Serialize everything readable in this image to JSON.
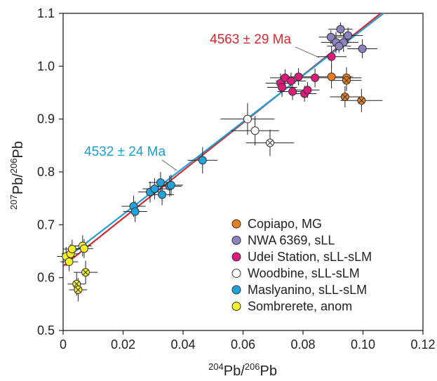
{
  "chart_data": {
    "type": "scatter",
    "xlabel": {
      "sup1": "204",
      "base1": "Pb/",
      "sup2": "206",
      "base2": "Pb"
    },
    "ylabel": {
      "sup1": "207",
      "base1": "Pb/",
      "sup2": "206",
      "base2": "Pb"
    },
    "xlim": [
      0,
      0.12
    ],
    "ylim": [
      0.5,
      1.1
    ],
    "xticks": [
      "0",
      "0.02",
      "0.04",
      "0.06",
      "0.08",
      "0.10",
      "0.12"
    ],
    "yticks": [
      "0.5",
      "0.6",
      "0.7",
      "0.8",
      "0.9",
      "1.0",
      "1.1"
    ],
    "grid": false,
    "legend_position": "bottom-right",
    "isochrons": [
      {
        "label": "4563 ± 29 Ma",
        "color": "#d7282f",
        "x": [
          0,
          0.107
        ],
        "y": [
          0.622,
          1.105
        ]
      },
      {
        "label": "4532 ± 24 Ma",
        "color": "#1aa0d8",
        "x": [
          0,
          0.108
        ],
        "y": [
          0.632,
          1.105
        ]
      }
    ],
    "series": [
      {
        "name": "Copiapo, MG",
        "color": "#e87e1f",
        "points": [
          {
            "x": 0.0895,
            "y": 0.98,
            "ex": 0.007,
            "ey": 0.022
          },
          {
            "x": 0.0945,
            "y": 0.978,
            "ex": 0.005,
            "ey": 0.02
          },
          {
            "x": 0.0945,
            "y": 0.973,
            "ex": 0.005,
            "ey": 0.02,
            "cross": true
          },
          {
            "x": 0.094,
            "y": 0.942,
            "ex": 0.005,
            "ey": 0.02,
            "cross": true
          },
          {
            "x": 0.0995,
            "y": 0.935,
            "ex": 0.007,
            "ey": 0.022,
            "cross": true
          }
        ]
      },
      {
        "name": "NWA 6369, sLL",
        "color": "#8c84c0",
        "points": [
          {
            "x": 0.0893,
            "y": 1.055,
            "ex": 0.004,
            "ey": 0.013
          },
          {
            "x": 0.0925,
            "y": 1.07,
            "ex": 0.004,
            "ey": 0.013
          },
          {
            "x": 0.091,
            "y": 1.045,
            "ex": 0.005,
            "ey": 0.02
          },
          {
            "x": 0.0935,
            "y": 1.045,
            "ex": 0.005,
            "ey": 0.018
          },
          {
            "x": 0.095,
            "y": 1.058,
            "ex": 0.005,
            "ey": 0.015
          },
          {
            "x": 0.0998,
            "y": 1.033,
            "ex": 0.005,
            "ey": 0.018
          },
          {
            "x": 0.092,
            "y": 1.038,
            "ex": 0.004,
            "ey": 0.013
          }
        ]
      },
      {
        "name": "Udei Station, sLL-sLM",
        "color": "#e0197d",
        "points": [
          {
            "x": 0.0725,
            "y": 0.968,
            "ex": 0.005,
            "ey": 0.018
          },
          {
            "x": 0.073,
            "y": 0.96,
            "ex": 0.005,
            "ey": 0.018
          },
          {
            "x": 0.074,
            "y": 0.978,
            "ex": 0.005,
            "ey": 0.016
          },
          {
            "x": 0.076,
            "y": 0.972,
            "ex": 0.005,
            "ey": 0.016
          },
          {
            "x": 0.0765,
            "y": 0.952,
            "ex": 0.005,
            "ey": 0.016
          },
          {
            "x": 0.0785,
            "y": 0.98,
            "ex": 0.005,
            "ey": 0.016
          },
          {
            "x": 0.0805,
            "y": 0.948,
            "ex": 0.004,
            "ey": 0.015
          },
          {
            "x": 0.0815,
            "y": 0.955,
            "ex": 0.004,
            "ey": 0.015
          },
          {
            "x": 0.084,
            "y": 0.978,
            "ex": 0.006,
            "ey": 0.018
          },
          {
            "x": 0.0895,
            "y": 1.018,
            "ex": 0.005,
            "ey": 0.02
          }
        ]
      },
      {
        "name": "Woodbine, sLL-sLM",
        "color": "#ffffff",
        "points": [
          {
            "x": 0.0615,
            "y": 0.9,
            "ex": 0.009,
            "ey": 0.03
          },
          {
            "x": 0.064,
            "y": 0.878,
            "ex": 0.008,
            "ey": 0.028
          },
          {
            "x": 0.069,
            "y": 0.855,
            "ex": 0.008,
            "ey": 0.025,
            "cross": true
          }
        ]
      },
      {
        "name": "Maslyanino, sLL-sLM",
        "color": "#1fa3dc",
        "points": [
          {
            "x": 0.0465,
            "y": 0.822,
            "ex": 0.005,
            "ey": 0.025
          },
          {
            "x": 0.0235,
            "y": 0.735,
            "ex": 0.004,
            "ey": 0.02
          },
          {
            "x": 0.024,
            "y": 0.725,
            "ex": 0.004,
            "ey": 0.02
          },
          {
            "x": 0.029,
            "y": 0.762,
            "ex": 0.004,
            "ey": 0.02
          },
          {
            "x": 0.0305,
            "y": 0.768,
            "ex": 0.004,
            "ey": 0.02
          },
          {
            "x": 0.0325,
            "y": 0.78,
            "ex": 0.004,
            "ey": 0.02
          },
          {
            "x": 0.033,
            "y": 0.757,
            "ex": 0.004,
            "ey": 0.02
          },
          {
            "x": 0.0355,
            "y": 0.773,
            "ex": 0.004,
            "ey": 0.02
          },
          {
            "x": 0.036,
            "y": 0.775,
            "ex": 0.004,
            "ey": 0.02
          }
        ]
      },
      {
        "name": "Sombrerete, anom",
        "color": "#f6ee2a",
        "points": [
          {
            "x": 0.001,
            "y": 0.64,
            "ex": 0.003,
            "ey": 0.018
          },
          {
            "x": 0.002,
            "y": 0.63,
            "ex": 0.003,
            "ey": 0.018
          },
          {
            "x": 0.0025,
            "y": 0.645,
            "ex": 0.003,
            "ey": 0.018
          },
          {
            "x": 0.003,
            "y": 0.654,
            "ex": 0.003,
            "ey": 0.018
          },
          {
            "x": 0.0065,
            "y": 0.66,
            "ex": 0.003,
            "ey": 0.02
          },
          {
            "x": 0.007,
            "y": 0.655,
            "ex": 0.003,
            "ey": 0.018
          },
          {
            "x": 0.0075,
            "y": 0.61,
            "ex": 0.004,
            "ey": 0.022,
            "cross": true
          },
          {
            "x": 0.0045,
            "y": 0.588,
            "ex": 0.003,
            "ey": 0.022,
            "cross": true
          },
          {
            "x": 0.005,
            "y": 0.577,
            "ex": 0.003,
            "ey": 0.022,
            "cross": true
          }
        ]
      }
    ]
  }
}
